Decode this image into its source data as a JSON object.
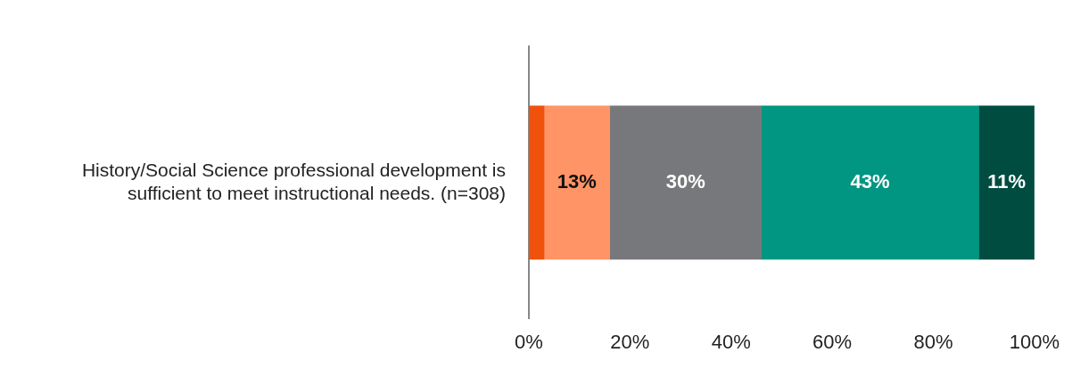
{
  "chart_data": {
    "type": "bar",
    "orientation": "horizontal",
    "stacked": true,
    "categories": [
      "History/Social Science professional development is sufficient to meet instructional needs. (n=308)"
    ],
    "series": [
      {
        "color": "#f0520c",
        "values": [
          3
        ],
        "value_labels": [
          null
        ]
      },
      {
        "color": "#ff9466",
        "values": [
          13
        ],
        "value_labels": [
          "13%"
        ]
      },
      {
        "color": "#77787b",
        "values": [
          30
        ],
        "value_labels": [
          "30%"
        ]
      },
      {
        "color": "#009682",
        "values": [
          43
        ],
        "value_labels": [
          "43%"
        ]
      },
      {
        "color": "#004c41",
        "values": [
          11
        ],
        "value_labels": [
          "11%"
        ]
      }
    ],
    "xlim": [
      0,
      100
    ],
    "xticks": [
      {
        "value": 0,
        "label": "0%"
      },
      {
        "value": 20,
        "label": "20%"
      },
      {
        "value": 40,
        "label": "40%"
      },
      {
        "value": 60,
        "label": "60%"
      },
      {
        "value": 80,
        "label": "80%"
      },
      {
        "value": 100,
        "label": "100%"
      }
    ],
    "grid": false,
    "legend": false
  }
}
